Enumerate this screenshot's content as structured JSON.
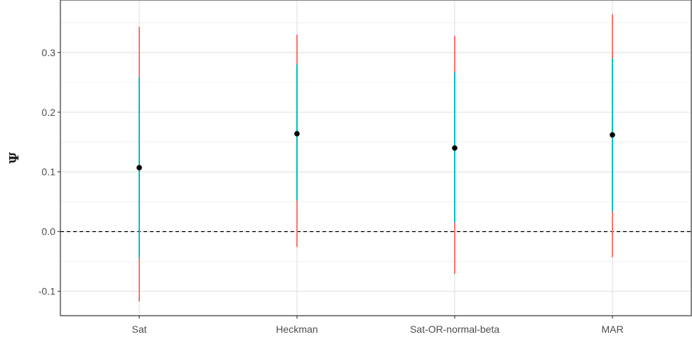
{
  "chart_data": {
    "type": "scatter",
    "categories": [
      "Sat",
      "Heckman",
      "Sat-OR-normal-beta",
      "MAR"
    ],
    "estimates": [
      0.107,
      0.164,
      0.14,
      0.162
    ],
    "inner_interval": {
      "color": "#00BFC4",
      "lower": [
        -0.044,
        0.052,
        0.015,
        0.034
      ],
      "upper": [
        0.258,
        0.28,
        0.267,
        0.29
      ]
    },
    "outer_interval": {
      "color": "#F8766D",
      "lower": [
        -0.117,
        -0.026,
        -0.071,
        -0.043
      ],
      "upper": [
        0.343,
        0.33,
        0.328,
        0.364
      ]
    },
    "reference_line": 0.0,
    "ylabel": "Ψ",
    "xlabel": "",
    "ylim": [
      -0.141,
      0.388
    ],
    "yticks": [
      "0.3",
      "0.2",
      "0.1",
      "0.0",
      "-0.1"
    ],
    "ytick_values": [
      0.3,
      0.2,
      0.1,
      0.0,
      -0.1
    ],
    "grid": true,
    "point_color": "#000000"
  }
}
